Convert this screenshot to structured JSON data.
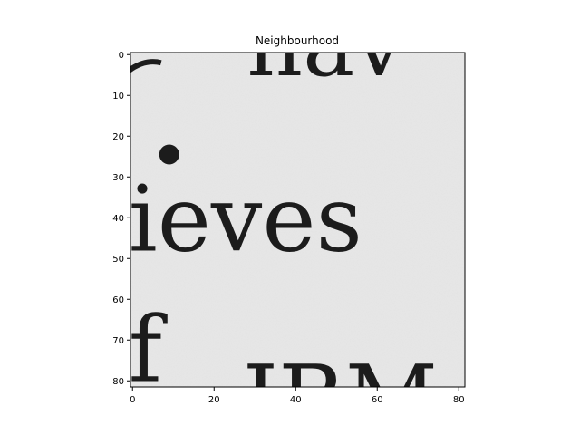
{
  "chart_data": {
    "type": "heatmap",
    "title": "Neighbourhood",
    "colormap": "gray",
    "xlim": [
      -0.5,
      81.5
    ],
    "ylim": [
      81.5,
      -0.5
    ],
    "x_ticks": [
      0,
      20,
      40,
      60,
      80
    ],
    "y_ticks": [
      0,
      10,
      20,
      30,
      40,
      50,
      60,
      70,
      80
    ],
    "image_text_fragments": [
      {
        "text": "hav",
        "row": 5,
        "col": 28
      },
      {
        "text": "ieves",
        "row": 48,
        "col": -1
      },
      {
        "text": "f",
        "row": 80,
        "col": -1
      },
      {
        "text": "IBM",
        "row": 92,
        "col": 27
      }
    ],
    "background_level": "#e8e8e8",
    "ink_level": "#1c1c1c"
  }
}
